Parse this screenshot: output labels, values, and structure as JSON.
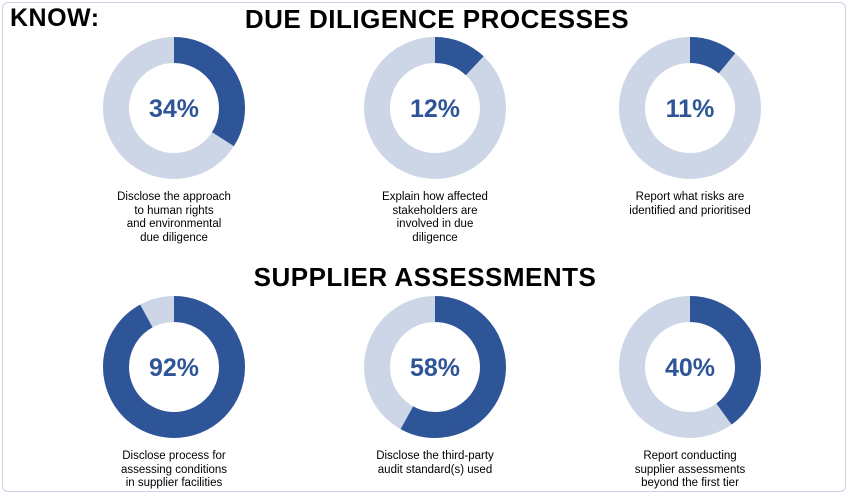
{
  "header": {
    "know_label": "KNOW:",
    "section1_title": "DUE DILIGENCE PROCESSES",
    "section2_title": "SUPPLIER ASSESSMENTS"
  },
  "colors": {
    "accent": "#2e5597",
    "track": "#cdd6e6",
    "label_text": "#2e5597"
  },
  "chart_data": [
    {
      "type": "pie",
      "variant": "donut",
      "section": "DUE DILIGENCE PROCESSES",
      "value": 34,
      "label": "34%",
      "caption": [
        "Disclose the approach",
        "to human rights",
        "and environmental",
        "due diligence"
      ]
    },
    {
      "type": "pie",
      "variant": "donut",
      "section": "DUE DILIGENCE PROCESSES",
      "value": 12,
      "label": "12%",
      "caption": [
        "Explain how affected",
        "stakeholders are",
        "involved in due",
        "diligence"
      ]
    },
    {
      "type": "pie",
      "variant": "donut",
      "section": "DUE DILIGENCE PROCESSES",
      "value": 11,
      "label": "11%",
      "caption": [
        "Report what risks are",
        "identified and prioritised"
      ]
    },
    {
      "type": "pie",
      "variant": "donut",
      "section": "SUPPLIER ASSESSMENTS",
      "value": 92,
      "label": "92%",
      "caption": [
        "Disclose process for",
        "assessing conditions",
        "in supplier facilities"
      ]
    },
    {
      "type": "pie",
      "variant": "donut",
      "section": "SUPPLIER ASSESSMENTS",
      "value": 58,
      "label": "58%",
      "caption": [
        "Disclose the third-party",
        "audit standard(s) used"
      ]
    },
    {
      "type": "pie",
      "variant": "donut",
      "section": "SUPPLIER ASSESSMENTS",
      "value": 40,
      "label": "40%",
      "caption": [
        "Report conducting",
        "supplier assessments",
        "beyond the first tier"
      ]
    }
  ]
}
